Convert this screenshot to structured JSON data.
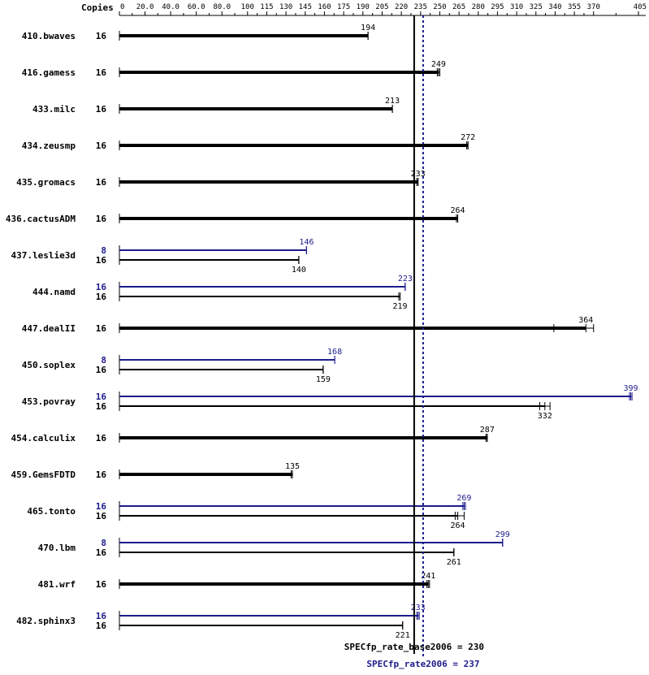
{
  "chart_data": {
    "type": "bar",
    "copies_header": "Copies",
    "x_ticks": [
      "0",
      "20.0",
      "40.0",
      "60.0",
      "80.0",
      "100",
      "115",
      "130",
      "145",
      "160",
      "175",
      "190",
      "205",
      "220",
      "235",
      "250",
      "265",
      "280",
      "295",
      "310",
      "325",
      "340",
      "355",
      "370",
      "405"
    ],
    "xlim": [
      0,
      405
    ],
    "colors": {
      "base": "#000000",
      "peak": "#1c1c8c"
    },
    "benchmarks": [
      {
        "name": "410.bwaves",
        "base_copies": "16",
        "base": 194,
        "base_runs": [
          194,
          194,
          194
        ]
      },
      {
        "name": "416.gamess",
        "base_copies": "16",
        "base": 249,
        "base_runs": [
          248,
          249,
          250
        ]
      },
      {
        "name": "433.milc",
        "base_copies": "16",
        "base": 213,
        "base_runs": [
          213,
          213,
          213
        ]
      },
      {
        "name": "434.zeusmp",
        "base_copies": "16",
        "base": 272,
        "base_runs": [
          271,
          272,
          272
        ]
      },
      {
        "name": "435.gromacs",
        "base_copies": "16",
        "base": 233,
        "base_runs": [
          232,
          233,
          233
        ]
      },
      {
        "name": "436.cactusADM",
        "base_copies": "16",
        "base": 264,
        "base_runs": [
          263,
          264,
          264
        ]
      },
      {
        "name": "437.leslie3d",
        "peak_copies": "8",
        "peak": 146,
        "peak_runs": [
          146,
          146,
          146
        ],
        "base_copies": "16",
        "base": 140,
        "base_runs": [
          140,
          140,
          140
        ]
      },
      {
        "name": "444.namd",
        "peak_copies": "16",
        "peak": 223,
        "peak_runs": [
          223,
          223,
          223
        ],
        "base_copies": "16",
        "base": 219,
        "base_runs": [
          218,
          219,
          219
        ]
      },
      {
        "name": "447.dealII",
        "base_copies": "16",
        "base": 364,
        "base_runs": [
          339,
          364,
          370
        ]
      },
      {
        "name": "450.soplex",
        "peak_copies": "8",
        "peak": 168,
        "peak_runs": [
          168,
          168,
          168
        ],
        "base_copies": "16",
        "base": 159,
        "base_runs": [
          159,
          159,
          159
        ]
      },
      {
        "name": "453.povray",
        "peak_copies": "16",
        "peak": 399,
        "peak_runs": [
          398,
          399,
          400
        ],
        "base_copies": "16",
        "base": 332,
        "base_runs": [
          328,
          332,
          336
        ]
      },
      {
        "name": "454.calculix",
        "base_copies": "16",
        "base": 287,
        "base_runs": [
          286,
          287,
          287
        ]
      },
      {
        "name": "459.GemsFDTD",
        "base_copies": "16",
        "base": 135,
        "base_runs": [
          134,
          135,
          135
        ]
      },
      {
        "name": "465.tonto",
        "peak_copies": "16",
        "peak": 269,
        "peak_runs": [
          268,
          269,
          270
        ],
        "base_copies": "16",
        "base": 264,
        "base_runs": [
          262,
          264,
          269
        ]
      },
      {
        "name": "470.lbm",
        "peak_copies": "8",
        "peak": 299,
        "peak_runs": [
          299,
          299,
          299
        ],
        "base_copies": "16",
        "base": 261,
        "base_runs": [
          261,
          261,
          261
        ]
      },
      {
        "name": "481.wrf",
        "base_copies": "16",
        "base": 241,
        "base_runs": [
          240,
          241,
          242
        ]
      },
      {
        "name": "482.sphinx3",
        "peak_copies": "16",
        "peak": 233,
        "peak_runs": [
          232,
          233,
          234
        ],
        "base_copies": "16",
        "base": 221,
        "base_runs": [
          221,
          221,
          221
        ]
      }
    ],
    "base_reference": {
      "label": "SPECfp_rate_base2006 = 230",
      "value": 230
    },
    "peak_reference": {
      "label": "SPECfp_rate2006 = 237",
      "value": 237
    }
  }
}
